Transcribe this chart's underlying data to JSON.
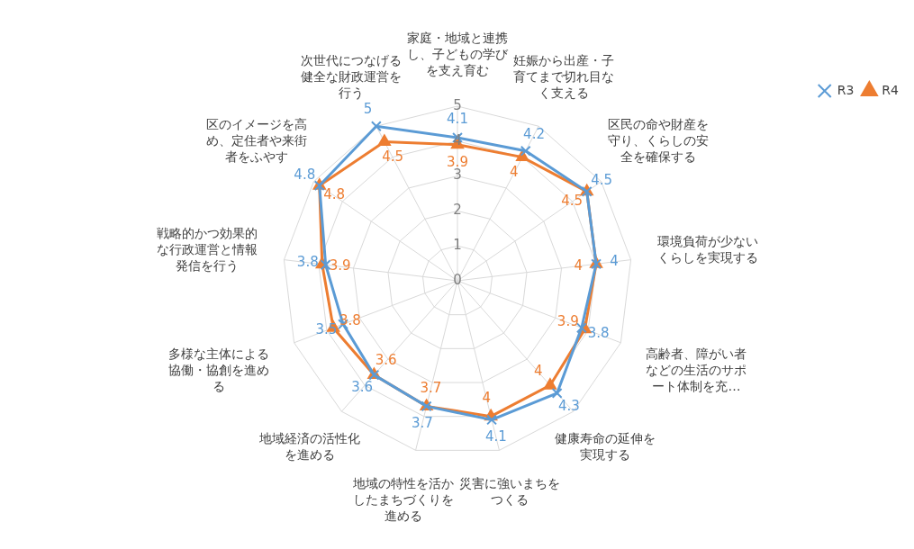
{
  "chart_data": {
    "type": "radar",
    "categories": [
      "家庭・地域と連携し、子どもの学びを支え育む",
      "妊娠から出産・子育てまで切れ目なく支える",
      "区民の命や財産を守り、くらしの安全を確保する",
      "環境負荷が少ないくらしを実現する",
      "高齢者、障がい者などの生活のサポート体制を充…",
      "健康寿命の延伸を実現する",
      "災害に強いまちをつくる",
      "地域の特性を活かしたまちづくりを進める",
      "地域経済の活性化を進める",
      "多様な主体による協働・協創を進める",
      "戦略的かつ効果的な行政運営と情報発信を行う",
      "区のイメージを高め、定住者や来街者をふやす",
      "次世代につなげる健全な財政運営を行う"
    ],
    "series": [
      {
        "name": "R3",
        "color": "#5b9bd5",
        "marker": "cross",
        "values": [
          4.1,
          4.2,
          4.5,
          4,
          3.8,
          4.3,
          4.1,
          3.7,
          3.6,
          3.5,
          3.8,
          4.8,
          5
        ]
      },
      {
        "name": "R4",
        "color": "#ed7d31",
        "marker": "triangle",
        "values": [
          3.9,
          4,
          4.5,
          4,
          3.9,
          4,
          4,
          3.7,
          3.6,
          3.8,
          3.9,
          4.8,
          4.5
        ]
      }
    ],
    "ylim": [
      0,
      5
    ],
    "yticks": [
      0,
      1,
      2,
      3,
      4,
      5
    ],
    "grid": true,
    "legend": "top right",
    "data_labels": true
  }
}
